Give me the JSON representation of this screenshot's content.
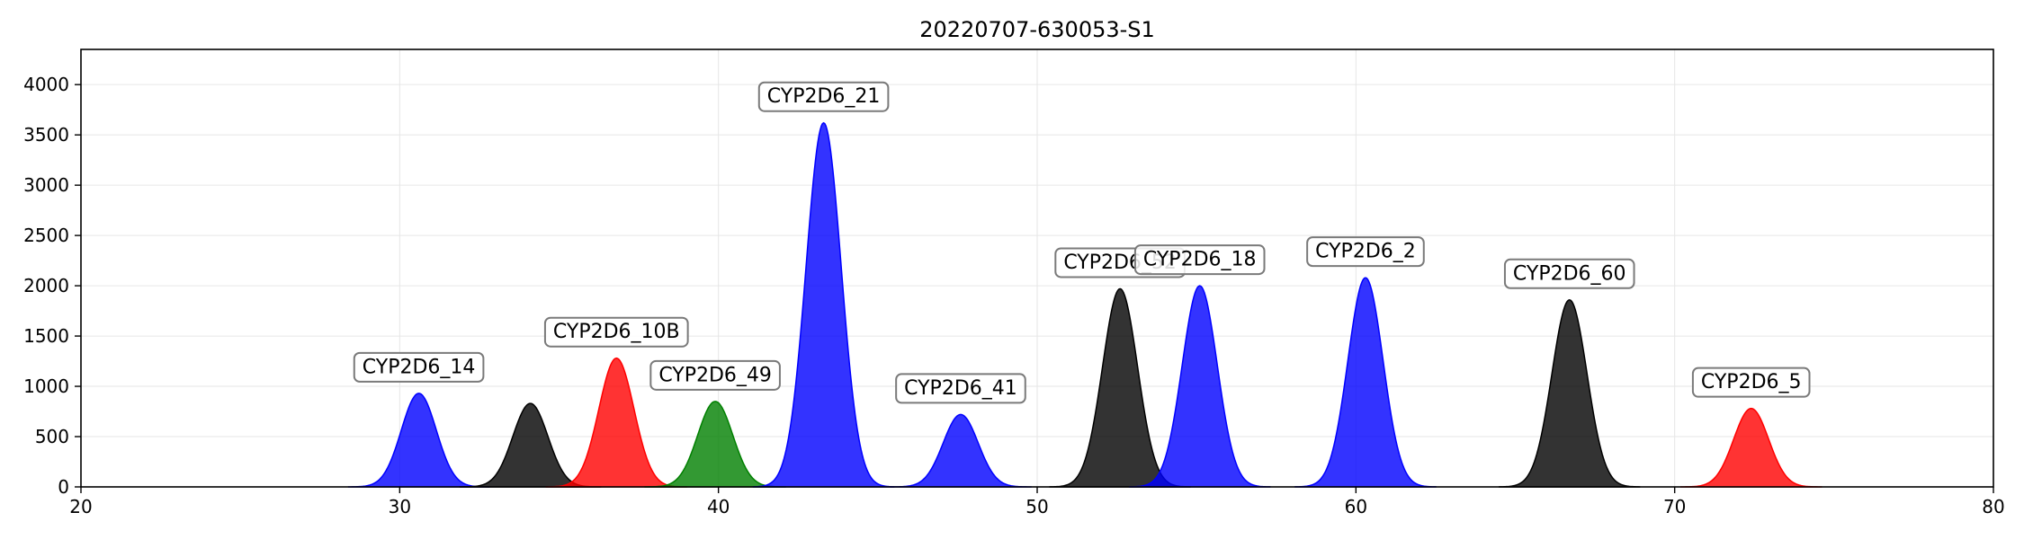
{
  "chart_data": {
    "type": "area",
    "title": "20220707-630053-S1",
    "xlabel": "",
    "ylabel": "",
    "xlim": [
      20,
      80
    ],
    "ylim": [
      0,
      4350
    ],
    "xticks": [
      20,
      30,
      40,
      50,
      60,
      70,
      80
    ],
    "yticks": [
      0,
      500,
      1000,
      1500,
      2000,
      2500,
      3000,
      3500,
      4000
    ],
    "grid": true,
    "colors": {
      "blue": "#0000ff",
      "black": "#000000",
      "red": "#ff0000",
      "green": "#008000"
    },
    "peaks": [
      {
        "center": 30.6,
        "height": 930,
        "sigma": 0.55,
        "color": "blue",
        "label": "CYP2D6_14"
      },
      {
        "center": 34.1,
        "height": 830,
        "sigma": 0.55,
        "color": "black",
        "label": ""
      },
      {
        "center": 36.8,
        "height": 1280,
        "sigma": 0.55,
        "color": "red",
        "label": "CYP2D6_10B"
      },
      {
        "center": 39.9,
        "height": 850,
        "sigma": 0.55,
        "color": "green",
        "label": "CYP2D6_49"
      },
      {
        "center": 43.3,
        "height": 3620,
        "sigma": 0.55,
        "color": "blue",
        "label": "CYP2D6_21"
      },
      {
        "center": 47.6,
        "height": 720,
        "sigma": 0.55,
        "color": "blue",
        "label": "CYP2D6_41"
      },
      {
        "center": 52.6,
        "height": 1970,
        "sigma": 0.55,
        "color": "black",
        "label": "CYP2D6_52"
      },
      {
        "center": 55.1,
        "height": 2000,
        "sigma": 0.55,
        "color": "blue",
        "label": "CYP2D6_18"
      },
      {
        "center": 60.3,
        "height": 2080,
        "sigma": 0.55,
        "color": "blue",
        "label": "CYP2D6_2"
      },
      {
        "center": 66.7,
        "height": 1860,
        "sigma": 0.55,
        "color": "black",
        "label": "CYP2D6_60"
      },
      {
        "center": 72.4,
        "height": 780,
        "sigma": 0.55,
        "color": "red",
        "label": "CYP2D6_5"
      }
    ]
  }
}
